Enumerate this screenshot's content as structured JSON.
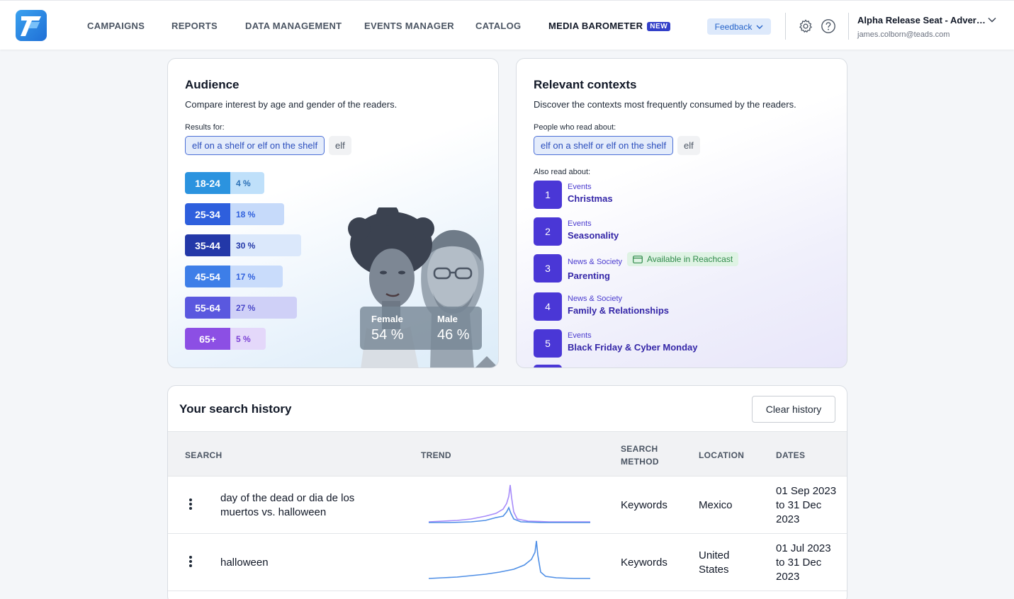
{
  "nav": {
    "items": [
      "CAMPAIGNS",
      "REPORTS",
      "DATA MANAGEMENT",
      "EVENTS MANAGER",
      "CATALOG"
    ],
    "active_item": "MEDIA BAROMETER",
    "active_badge": "NEW",
    "feedback_label": "Feedback",
    "account_name": "Alpha Release Seat - Adver…",
    "account_email": "james.colborn@teads.com",
    "icons": [
      "gear-icon",
      "help-icon",
      "chevron-down-icon"
    ]
  },
  "audience": {
    "title": "Audience",
    "subtitle": "Compare interest by age and gender of the readers.",
    "results_label": "Results for:",
    "chips": [
      "elf on a shelf or elf on the shelf",
      "elf"
    ],
    "ages": [
      {
        "label": "18-24",
        "value": "4 %",
        "pct": 4,
        "color_label": "#2b93df",
        "color_bar": "#bfe0fa",
        "text": "#2a6fb5"
      },
      {
        "label": "25-34",
        "value": "18 %",
        "pct": 18,
        "color_label": "#2e5fdd",
        "color_bar": "#c6dafa",
        "text": "#2e5fdd"
      },
      {
        "label": "35-44",
        "value": "30 %",
        "pct": 30,
        "color_label": "#2338a8",
        "color_bar": "#dbe8fb",
        "text": "#2338a8"
      },
      {
        "label": "45-54",
        "value": "17 %",
        "pct": 17,
        "color_label": "#3d7ee8",
        "color_bar": "#c9dcfb",
        "text": "#2e5fdd"
      },
      {
        "label": "55-64",
        "value": "27 %",
        "pct": 27,
        "color_label": "#5a58df",
        "color_bar": "#cfd0f7",
        "text": "#4a48c9"
      },
      {
        "label": "65+",
        "value": "5 %",
        "pct": 5,
        "color_label": "#8c4fe4",
        "color_bar": "#e4d8fa",
        "text": "#7a3fd4"
      }
    ],
    "female_label": "Female",
    "female_value": "54 %",
    "male_label": "Male",
    "male_value": "46 %"
  },
  "contexts": {
    "title": "Relevant contexts",
    "subtitle": "Discover the contexts most frequently consumed by the readers.",
    "people_label": "People who read about:",
    "chips": [
      "elf on a shelf or elf on the shelf",
      "elf"
    ],
    "also_label": "Also read about:",
    "items": [
      {
        "rank": "1",
        "category": "Events",
        "name": "Christmas"
      },
      {
        "rank": "2",
        "category": "Events",
        "name": "Seasonality"
      },
      {
        "rank": "3",
        "category": "News & Society",
        "name": "Parenting",
        "badge": "Available in Reachcast"
      },
      {
        "rank": "4",
        "category": "News & Society",
        "name": "Family & Relationships"
      },
      {
        "rank": "5",
        "category": "Events",
        "name": "Black Friday & Cyber Monday"
      }
    ]
  },
  "history": {
    "title": "Your search history",
    "clear_label": "Clear history",
    "columns": {
      "search": "SEARCH",
      "trend": "TREND",
      "method_1": "SEARCH",
      "method_2": "METHOD",
      "location": "LOCATION",
      "dates": "DATES"
    },
    "rows": [
      {
        "search_1": "day of the dead or dia de los",
        "search_2": "muertos vs. halloween",
        "method": "Keywords",
        "location_1": "Mexico",
        "location_2": "",
        "dates_1": "01 Sep 2023",
        "dates_2": "to 31 Dec",
        "dates_3": "2023"
      },
      {
        "search_1": "halloween",
        "search_2": "",
        "method": "Keywords",
        "location_1": "United",
        "location_2": "States",
        "dates_1": "01 Jul 2023",
        "dates_2": "to 31 Dec",
        "dates_3": "2023"
      }
    ]
  },
  "colors": {
    "accent": "#4a37d6",
    "link": "#2563c9"
  }
}
